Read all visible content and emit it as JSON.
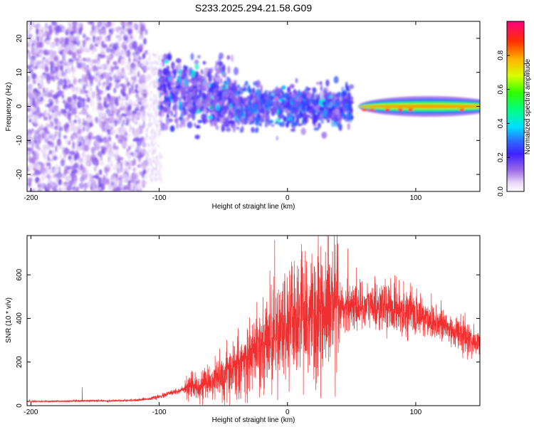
{
  "title": "S233.2025.294.21.58.G09",
  "chart_data": [
    {
      "type": "heatmap",
      "xlabel": "Height of straight line (km)",
      "ylabel": "Frequency (Hz)",
      "xlim": [
        -203,
        150
      ],
      "ylim": [
        -25,
        25
      ],
      "xticks": [
        -200,
        -100,
        0,
        100
      ],
      "yticks": [
        -20,
        -10,
        0,
        10,
        20
      ],
      "colorbar": {
        "label": "Normalized spectral amplitude",
        "range": [
          0,
          1
        ],
        "ticks": [
          "0.0",
          "0.2",
          "0.4",
          "0.6",
          "0.8"
        ],
        "tick_values": [
          0.0,
          0.2,
          0.4,
          0.6,
          0.8
        ]
      },
      "description_of_structure": [
        {
          "x_range": [
            -203,
            -110
          ],
          "freq_range": [
            -25,
            25
          ],
          "amplitude": 0.1
        },
        {
          "x_range": [
            -100,
            -40
          ],
          "freq_center": 5,
          "freq_spread": 8,
          "amplitude": 0.2
        },
        {
          "x_range": [
            -40,
            50
          ],
          "freq_center": 0,
          "freq_spread": 5,
          "amplitude": 0.25
        },
        {
          "x_range": [
            50,
            150
          ],
          "freq_center": 0,
          "freq_spread": 1,
          "amplitude": 0.8
        }
      ]
    },
    {
      "type": "line",
      "xlabel": "Height of straight line (km)",
      "ylabel": "SNR (10 * v/v)",
      "xlim": [
        -203,
        150
      ],
      "ylim": [
        0,
        780
      ],
      "xticks": [
        -200,
        -100,
        0,
        100
      ],
      "yticks": [
        0,
        200,
        400,
        600
      ],
      "series": [
        {
          "name": "SNR",
          "color": "#f03030",
          "x": [
            -203,
            -180,
            -160,
            -140,
            -120,
            -110,
            -100,
            -90,
            -80,
            -70,
            -60,
            -50,
            -40,
            -30,
            -20,
            -10,
            0,
            10,
            20,
            30,
            40,
            50,
            60,
            70,
            80,
            90,
            100,
            110,
            120,
            130,
            140,
            150
          ],
          "values": [
            20,
            20,
            22,
            22,
            25,
            30,
            40,
            60,
            75,
            90,
            110,
            140,
            180,
            220,
            280,
            330,
            370,
            390,
            420,
            440,
            450,
            460,
            460,
            455,
            450,
            440,
            420,
            400,
            370,
            340,
            310,
            280
          ],
          "peaks": [
            {
              "x": -160,
              "value": 85
            },
            {
              "x": -10,
              "value": 760
            },
            {
              "x": 24,
              "value": 780
            },
            {
              "x": 47,
              "value": 720
            }
          ]
        }
      ]
    }
  ]
}
